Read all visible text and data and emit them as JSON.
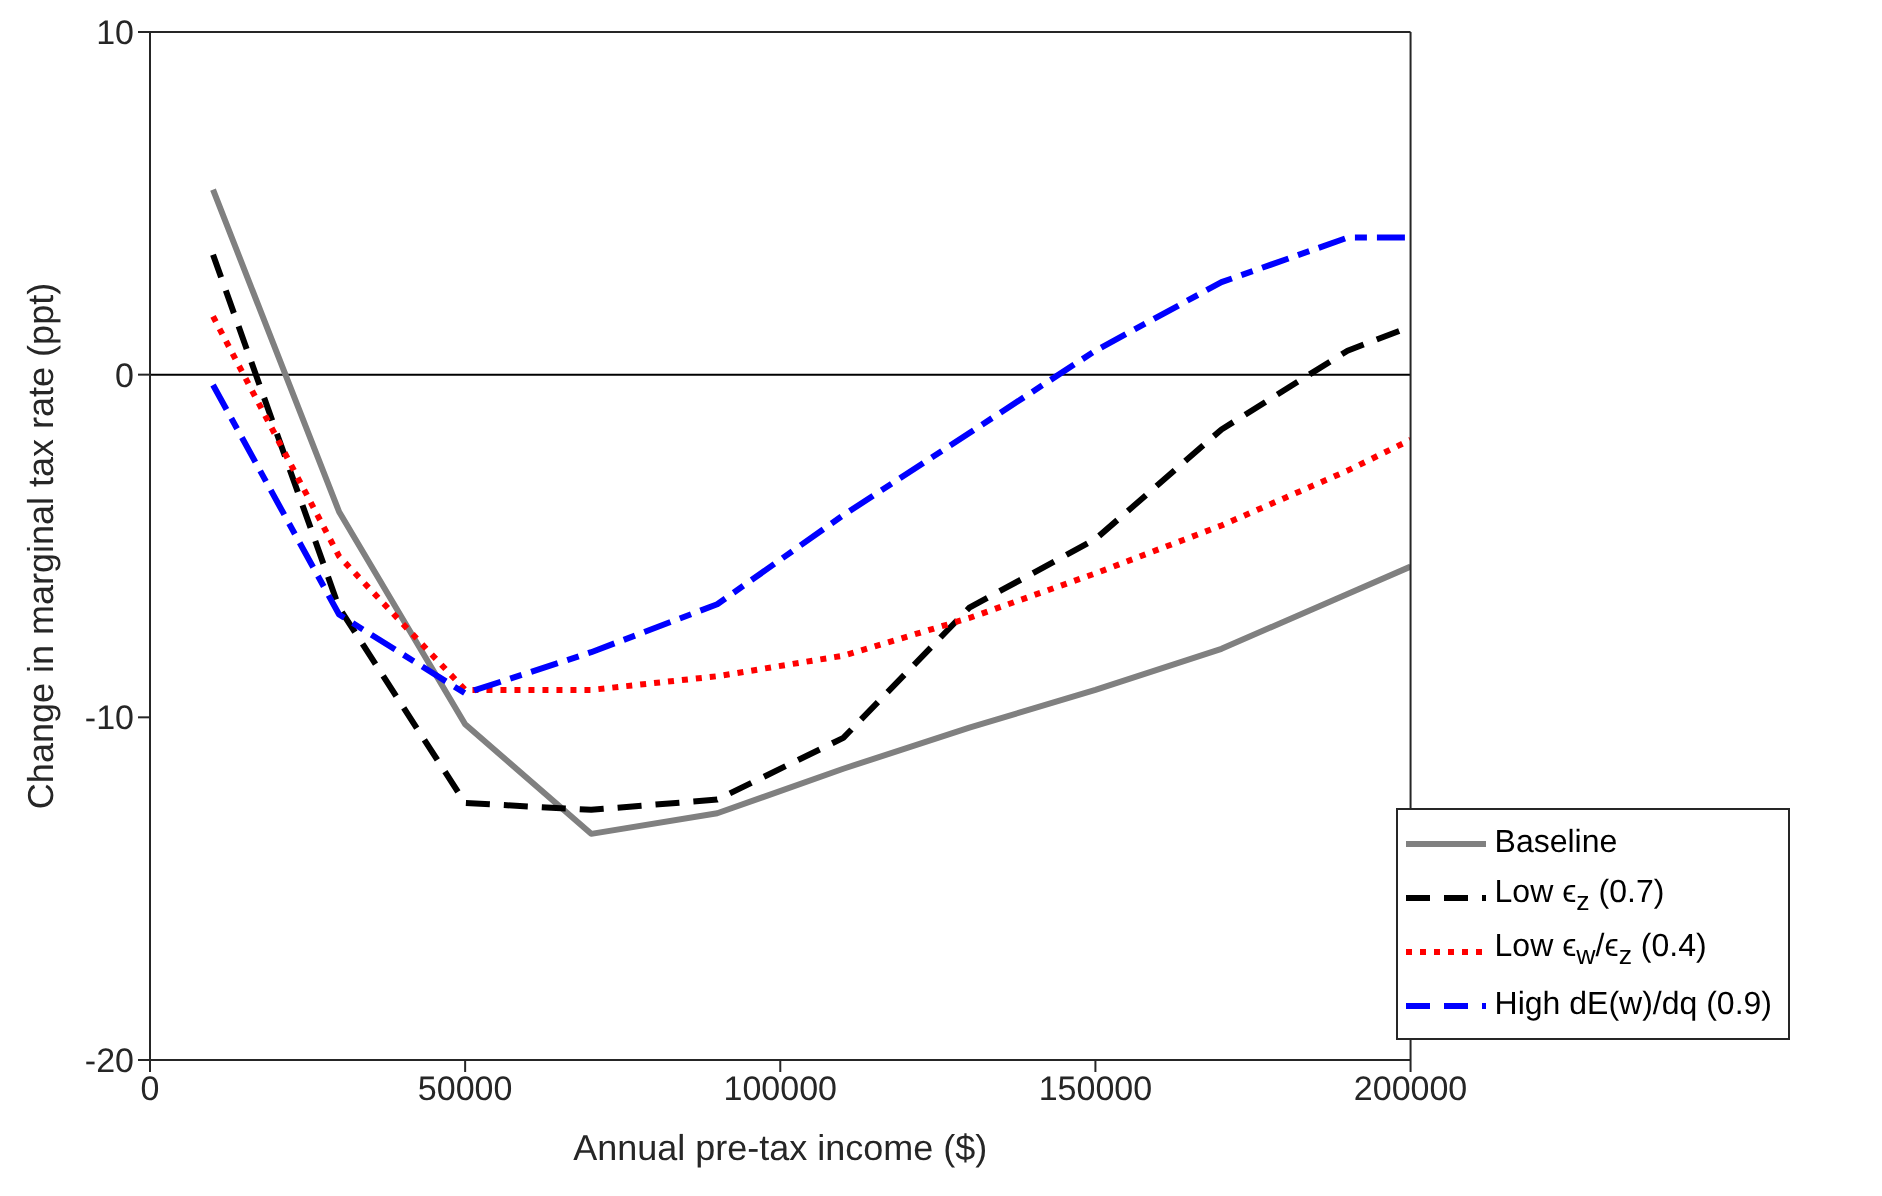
{
  "chart_data": {
    "type": "line",
    "xlabel": "Annual pre-tax income ($)",
    "ylabel": "Change in marginal tax rate (ppt)",
    "x": [
      10000,
      30000,
      50000,
      70000,
      90000,
      110000,
      130000,
      150000,
      170000,
      190000,
      200000
    ],
    "series": [
      {
        "name": "Baseline",
        "color": "#808080",
        "line_style": "solid",
        "values": [
          5.4,
          -4.0,
          -10.2,
          -13.4,
          -12.8,
          -11.5,
          -10.3,
          -9.2,
          -8.0,
          -6.4,
          -5.6
        ]
      },
      {
        "name": "Low ϵ$_{z}$ (0.7)",
        "color": "#000000",
        "line_style": "dashed",
        "values": [
          3.5,
          -6.8,
          -12.5,
          -12.7,
          -12.4,
          -10.6,
          -6.8,
          -4.8,
          -1.6,
          0.7,
          1.4
        ]
      },
      {
        "name": "Low ϵ$_{w}$/ϵ$_{z}$ (0.4)",
        "color": "#ff0000",
        "line_style": "dotted",
        "values": [
          1.7,
          -5.3,
          -9.2,
          -9.2,
          -8.8,
          -8.2,
          -7.1,
          -5.8,
          -4.4,
          -2.8,
          -1.9
        ]
      },
      {
        "name": "High dE(w)/dq (0.9)",
        "color": "#0000ff",
        "line_style": "dashed",
        "values": [
          -0.3,
          -7.0,
          -9.3,
          -8.1,
          -6.7,
          -4.1,
          -1.7,
          0.7,
          2.7,
          4.0,
          4.0
        ]
      }
    ],
    "xlim": [
      0,
      200000
    ],
    "xticks": [
      0,
      50000,
      100000,
      150000,
      200000
    ],
    "ylim": [
      -20,
      10
    ],
    "yticks": [
      -20,
      -10,
      0,
      10
    ],
    "ref_lines": [
      {
        "axis": "y",
        "value": 0,
        "color": "#000000"
      }
    ],
    "grid": false,
    "legend": "bottom right",
    "marker": "none"
  }
}
